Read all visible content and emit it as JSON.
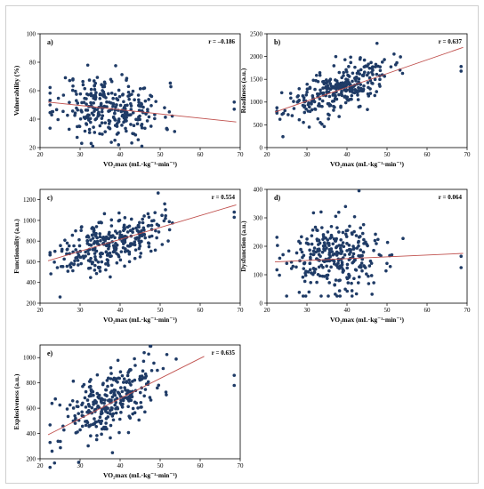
{
  "chart_data": [
    {
      "type": "scatter",
      "panel_label": "a)",
      "r_label": "r = –0.186",
      "xlabel": "VO₂max (mL·kg⁻¹·min⁻¹)",
      "ylabel": "Vulnerability (%)",
      "xlim": [
        20,
        70
      ],
      "ylim": [
        20,
        100
      ],
      "xticks": [
        20,
        30,
        40,
        50,
        60,
        70
      ],
      "yticks": [
        20,
        40,
        60,
        80,
        100
      ],
      "fit_line": {
        "x": [
          22,
          69
        ],
        "y": [
          52,
          38
        ]
      },
      "seed": 11,
      "n": 300,
      "x_mean": 37.5,
      "x_sd": 6.5,
      "y_mean": 48,
      "y_sd": 11,
      "y_clip": [
        21,
        86
      ],
      "slope": -0.3,
      "outliers": [
        [
          68.5,
          52
        ],
        [
          68.5,
          47
        ],
        [
          22.5,
          50
        ]
      ]
    },
    {
      "type": "scatter",
      "panel_label": "b)",
      "r_label": "r = 0.637",
      "xlabel": "VO₂max (mL·kg⁻¹·min⁻¹)",
      "ylabel": "Readiness (a.u.)",
      "xlim": [
        20,
        70
      ],
      "ylim": [
        0,
        2500
      ],
      "xticks": [
        20,
        30,
        40,
        50,
        60,
        70
      ],
      "yticks": [
        0,
        500,
        1000,
        1500,
        2000,
        2500
      ],
      "fit_line": {
        "x": [
          22,
          69
        ],
        "y": [
          780,
          2200
        ]
      },
      "seed": 23,
      "n": 300,
      "x_mean": 37.5,
      "x_sd": 6.5,
      "y_mean": 1270,
      "y_sd": 240,
      "y_clip": [
        250,
        2290
      ],
      "slope": 30,
      "outliers": [
        [
          68.5,
          1780
        ],
        [
          68.5,
          1680
        ],
        [
          24,
          240
        ],
        [
          47.5,
          2290
        ]
      ]
    },
    {
      "type": "scatter",
      "panel_label": "c)",
      "r_label": "r = 0.554",
      "xlabel": "VO₂max (mL·kg⁻¹·min⁻¹)",
      "ylabel": "Functionality (a.u.)",
      "xlim": [
        20,
        70
      ],
      "ylim": [
        200,
        1300
      ],
      "xticks": [
        20,
        30,
        40,
        50,
        60,
        70
      ],
      "yticks": [
        200,
        400,
        600,
        800,
        1000,
        1200
      ],
      "fit_line": {
        "x": [
          22,
          69
        ],
        "y": [
          610,
          1150
        ]
      },
      "seed": 37,
      "n": 300,
      "x_mean": 37.5,
      "x_sd": 6.5,
      "y_mean": 790,
      "y_sd": 120,
      "y_clip": [
        250,
        1270
      ],
      "slope": 11.5,
      "outliers": [
        [
          68.5,
          1080
        ],
        [
          68.5,
          1030
        ],
        [
          25,
          260
        ],
        [
          49.5,
          1265
        ]
      ]
    },
    {
      "type": "scatter",
      "panel_label": "d)",
      "r_label": "r = 0.064",
      "xlabel": "VO₂max (mL·kg⁻¹·min⁻¹)",
      "ylabel": "Dysfunction (a.u.)",
      "xlim": [
        20,
        70
      ],
      "ylim": [
        0,
        400
      ],
      "xticks": [
        20,
        30,
        40,
        50,
        60,
        70
      ],
      "yticks": [
        0,
        100,
        200,
        300,
        400
      ],
      "fit_line": {
        "x": [
          22,
          69
        ],
        "y": [
          145,
          175
        ]
      },
      "seed": 53,
      "n": 300,
      "x_mean": 37.5,
      "x_sd": 6.5,
      "y_mean": 160,
      "y_sd": 65,
      "y_clip": [
        25,
        395
      ],
      "slope": 0.6,
      "outliers": [
        [
          68.5,
          165
        ],
        [
          68.5,
          125
        ],
        [
          43,
          395
        ]
      ]
    },
    {
      "type": "scatter",
      "panel_label": "e)",
      "r_label": "r = 0.635",
      "xlabel": "VO₂max (mL·kg⁻¹·min⁻¹)",
      "ylabel": "Explosiveness (a.u.)",
      "xlim": [
        20,
        70
      ],
      "ylim": [
        200,
        1100
      ],
      "xticks": [
        20,
        30,
        40,
        50,
        60,
        70
      ],
      "yticks": [
        200,
        400,
        600,
        800,
        1000
      ],
      "fit_line": {
        "x": [
          22,
          61
        ],
        "y": [
          390,
          1010
        ]
      },
      "seed": 71,
      "n": 300,
      "x_mean": 37.5,
      "x_sd": 6.5,
      "y_mean": 650,
      "y_sd": 130,
      "y_clip": [
        130,
        1090
      ],
      "slope": 15.5,
      "outliers": [
        [
          68.5,
          860
        ],
        [
          68.5,
          780
        ],
        [
          23,
          260
        ],
        [
          47.5,
          1090
        ]
      ]
    }
  ]
}
